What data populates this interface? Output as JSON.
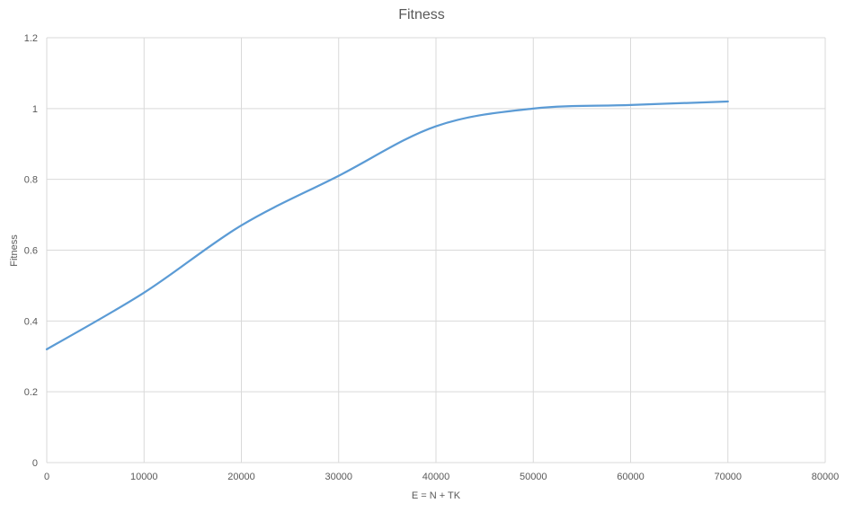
{
  "chart_data": {
    "type": "line",
    "title": "Fitness",
    "xlabel": "E = N + TK",
    "ylabel": "Fitness",
    "xlim": [
      0,
      80000
    ],
    "ylim": [
      0,
      1.2
    ],
    "x_ticks": [
      0,
      10000,
      20000,
      30000,
      40000,
      50000,
      60000,
      70000,
      80000
    ],
    "y_ticks": [
      0,
      0.2,
      0.4,
      0.6,
      0.8,
      1,
      1.2
    ],
    "grid": true,
    "legend": "none",
    "series": [
      {
        "color": "#5b9bd5",
        "x": [
          0,
          10000,
          20000,
          30000,
          40000,
          50000,
          60000,
          70000
        ],
        "y": [
          0.32,
          0.48,
          0.67,
          0.81,
          0.95,
          1.0,
          1.01,
          1.02
        ]
      }
    ]
  }
}
